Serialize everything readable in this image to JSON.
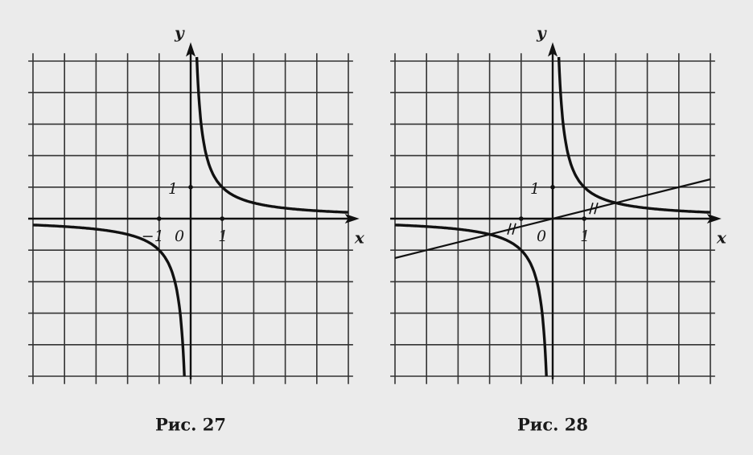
{
  "figures": [
    {
      "y_label": "y",
      "x_label": "x",
      "y_one": "1",
      "x_minus_one": "−1",
      "origin": "0",
      "x_one": "1",
      "caption": "Рис. 27"
    },
    {
      "y_label": "y",
      "x_label": "x",
      "y_one": "1",
      "origin": "0",
      "x_one": "1",
      "caption": "Рис. 28"
    }
  ]
}
